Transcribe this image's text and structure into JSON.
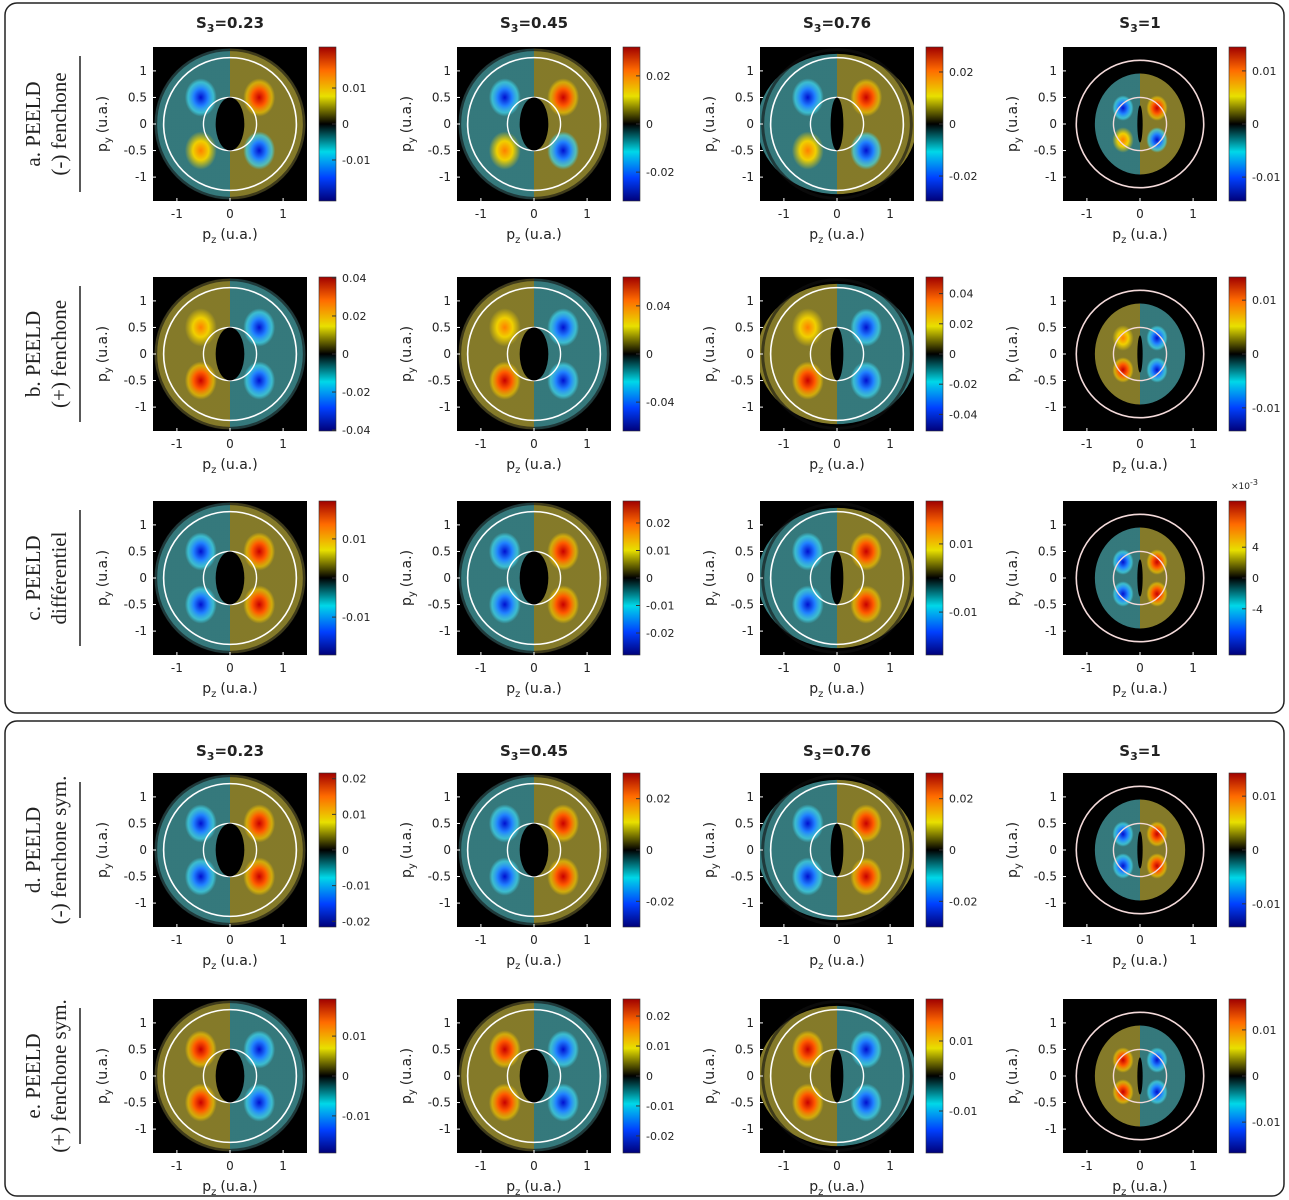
{
  "axes": {
    "x_label": {
      "symbol": "p",
      "subscript": "z",
      "unit": "(u.a.)"
    },
    "y_label": {
      "symbol": "p",
      "subscript": "y",
      "unit": "(u.a.)"
    },
    "lim": [
      -1.45,
      1.45
    ],
    "xticks": [
      -1,
      0,
      1
    ],
    "yticks": [
      1,
      0.5,
      0,
      -0.5,
      -1
    ]
  },
  "boxes": [
    {
      "column_titles": [
        {
          "symbol": "S",
          "subscript": "3",
          "value": "=0.23"
        },
        {
          "symbol": "S",
          "subscript": "3",
          "value": "=0.45"
        },
        {
          "symbol": "S",
          "subscript": "3",
          "value": "=0.76"
        },
        {
          "symbol": "S",
          "subscript": "3",
          "value": "=1"
        }
      ],
      "rows": [
        {
          "label": [
            "a. PEELD",
            "(-) fenchone"
          ],
          "colorbars": [
            {
              "lim": [
                -0.0214,
                0.0214
              ],
              "ticks": [
                0.01,
                0,
                -0.01
              ]
            },
            {
              "lim": [
                -0.032,
                0.032
              ],
              "ticks": [
                0.02,
                0,
                -0.02
              ]
            },
            {
              "lim": [
                -0.0296,
                0.0296
              ],
              "ticks": [
                0.02,
                0,
                -0.02
              ]
            },
            {
              "lim": [
                -0.0145,
                0.0145
              ],
              "ticks": [
                0.01,
                0,
                -0.01
              ]
            }
          ]
        },
        {
          "label": [
            "b. PEELD",
            "(+) fenchone"
          ],
          "colorbars": [
            {
              "lim": [
                -0.0405,
                0.0405
              ],
              "ticks": [
                0.04,
                0.02,
                0,
                -0.02,
                -0.04
              ]
            },
            {
              "lim": [
                -0.064,
                0.064
              ],
              "ticks": [
                0.04,
                0,
                -0.04
              ]
            },
            {
              "lim": [
                -0.051,
                0.051
              ],
              "ticks": [
                0.04,
                0.02,
                0,
                -0.02,
                -0.04
              ]
            },
            {
              "lim": [
                -0.0143,
                0.0143
              ],
              "ticks": [
                0.01,
                0,
                -0.01
              ]
            }
          ]
        },
        {
          "label": [
            "c. PEELD",
            "différentiel"
          ],
          "colorbars": [
            {
              "lim": [
                -0.0197,
                0.0197
              ],
              "ticks": [
                0.01,
                0,
                -0.01
              ]
            },
            {
              "lim": [
                -0.028,
                0.028
              ],
              "ticks": [
                0.02,
                0.01,
                0,
                -0.01,
                -0.02
              ]
            },
            {
              "lim": [
                -0.0226,
                0.0226
              ],
              "ticks": [
                0.01,
                0,
                -0.01
              ]
            },
            {
              "lim": [
                -10,
                10
              ],
              "ticks": [
                4,
                0,
                -4
              ],
              "exponent": {
                "base": "×10",
                "power": "-3"
              }
            }
          ]
        }
      ]
    },
    {
      "column_titles": [
        {
          "symbol": "S",
          "subscript": "3",
          "value": "=0.23"
        },
        {
          "symbol": "S",
          "subscript": "3",
          "value": "=0.45"
        },
        {
          "symbol": "S",
          "subscript": "3",
          "value": "=0.76"
        },
        {
          "symbol": "S",
          "subscript": "3",
          "value": "=1"
        }
      ],
      "rows": [
        {
          "label": [
            "d. PEELD",
            "(-) fenchone sym."
          ],
          "colorbars": [
            {
              "lim": [
                -0.0216,
                0.0216
              ],
              "ticks": [
                0.02,
                0.01,
                0,
                -0.01,
                -0.02
              ]
            },
            {
              "lim": [
                -0.03,
                0.03
              ],
              "ticks": [
                0.02,
                0,
                -0.02
              ]
            },
            {
              "lim": [
                -0.03,
                0.03
              ],
              "ticks": [
                0.02,
                0,
                -0.02
              ]
            },
            {
              "lim": [
                -0.0143,
                0.0143
              ],
              "ticks": [
                0.01,
                0,
                -0.01
              ]
            }
          ]
        },
        {
          "label": [
            "e. PEELD",
            "(+) fenchone sym."
          ],
          "colorbars": [
            {
              "lim": [
                -0.0193,
                0.0193
              ],
              "ticks": [
                0.01,
                0,
                -0.01
              ]
            },
            {
              "lim": [
                -0.0257,
                0.0257
              ],
              "ticks": [
                0.02,
                0.01,
                0,
                -0.01,
                -0.02
              ]
            },
            {
              "lim": [
                -0.022,
                0.022
              ],
              "ticks": [
                0.01,
                0,
                -0.01
              ]
            },
            {
              "lim": [
                -0.0167,
                0.0167
              ],
              "ticks": [
                0.01,
                0,
                -0.01
              ]
            }
          ]
        }
      ]
    }
  ]
}
